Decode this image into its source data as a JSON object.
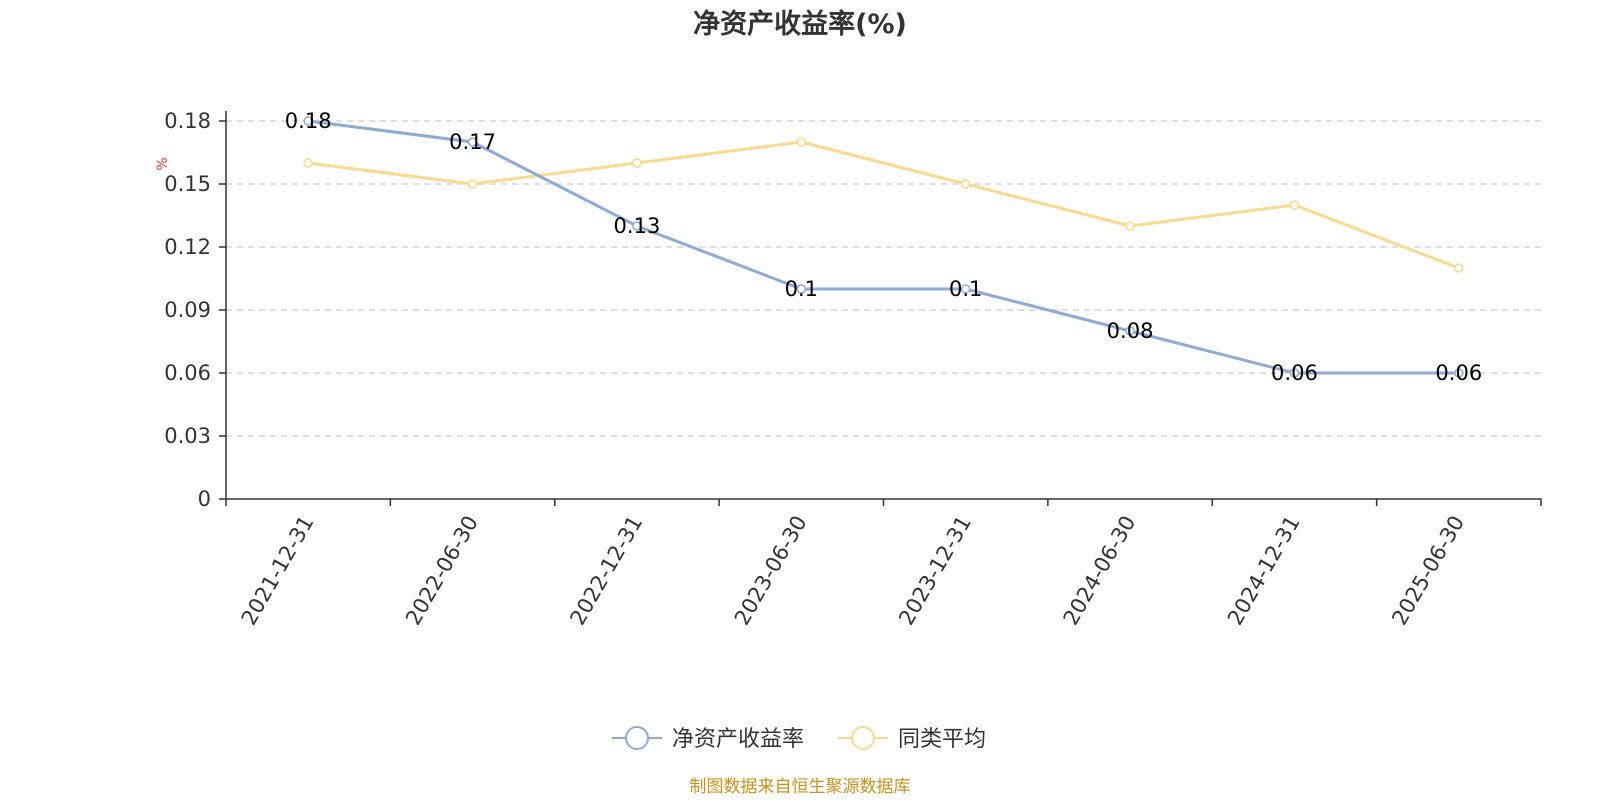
{
  "chart_data": {
    "type": "line",
    "title": "净资产收益率(%)",
    "ylabel": "%",
    "categories": [
      "2021-12-31",
      "2022-06-30",
      "2022-12-31",
      "2023-06-30",
      "2023-12-31",
      "2024-06-30",
      "2024-12-31",
      "2025-06-30"
    ],
    "yticks": [
      "0",
      "0.03",
      "0.06",
      "0.09",
      "0.12",
      "0.15",
      "0.18"
    ],
    "ylim": [
      0,
      0.18
    ],
    "grid": true,
    "legend_position": "bottom",
    "series": [
      {
        "name": "净资产收益率",
        "color": "#8eaad6",
        "values": [
          0.18,
          0.17,
          0.13,
          0.1,
          0.1,
          0.08,
          0.06,
          0.06
        ],
        "labels": [
          "0.18",
          "0.17",
          "0.13",
          "0.1",
          "0.1",
          "0.08",
          "0.06",
          "0.06"
        ]
      },
      {
        "name": "同类平均",
        "color": "#fcd98f",
        "values": [
          0.16,
          0.15,
          0.16,
          0.17,
          0.15,
          0.13,
          0.14,
          0.11
        ]
      }
    ]
  },
  "source": "制图数据来自恒生聚源数据库"
}
